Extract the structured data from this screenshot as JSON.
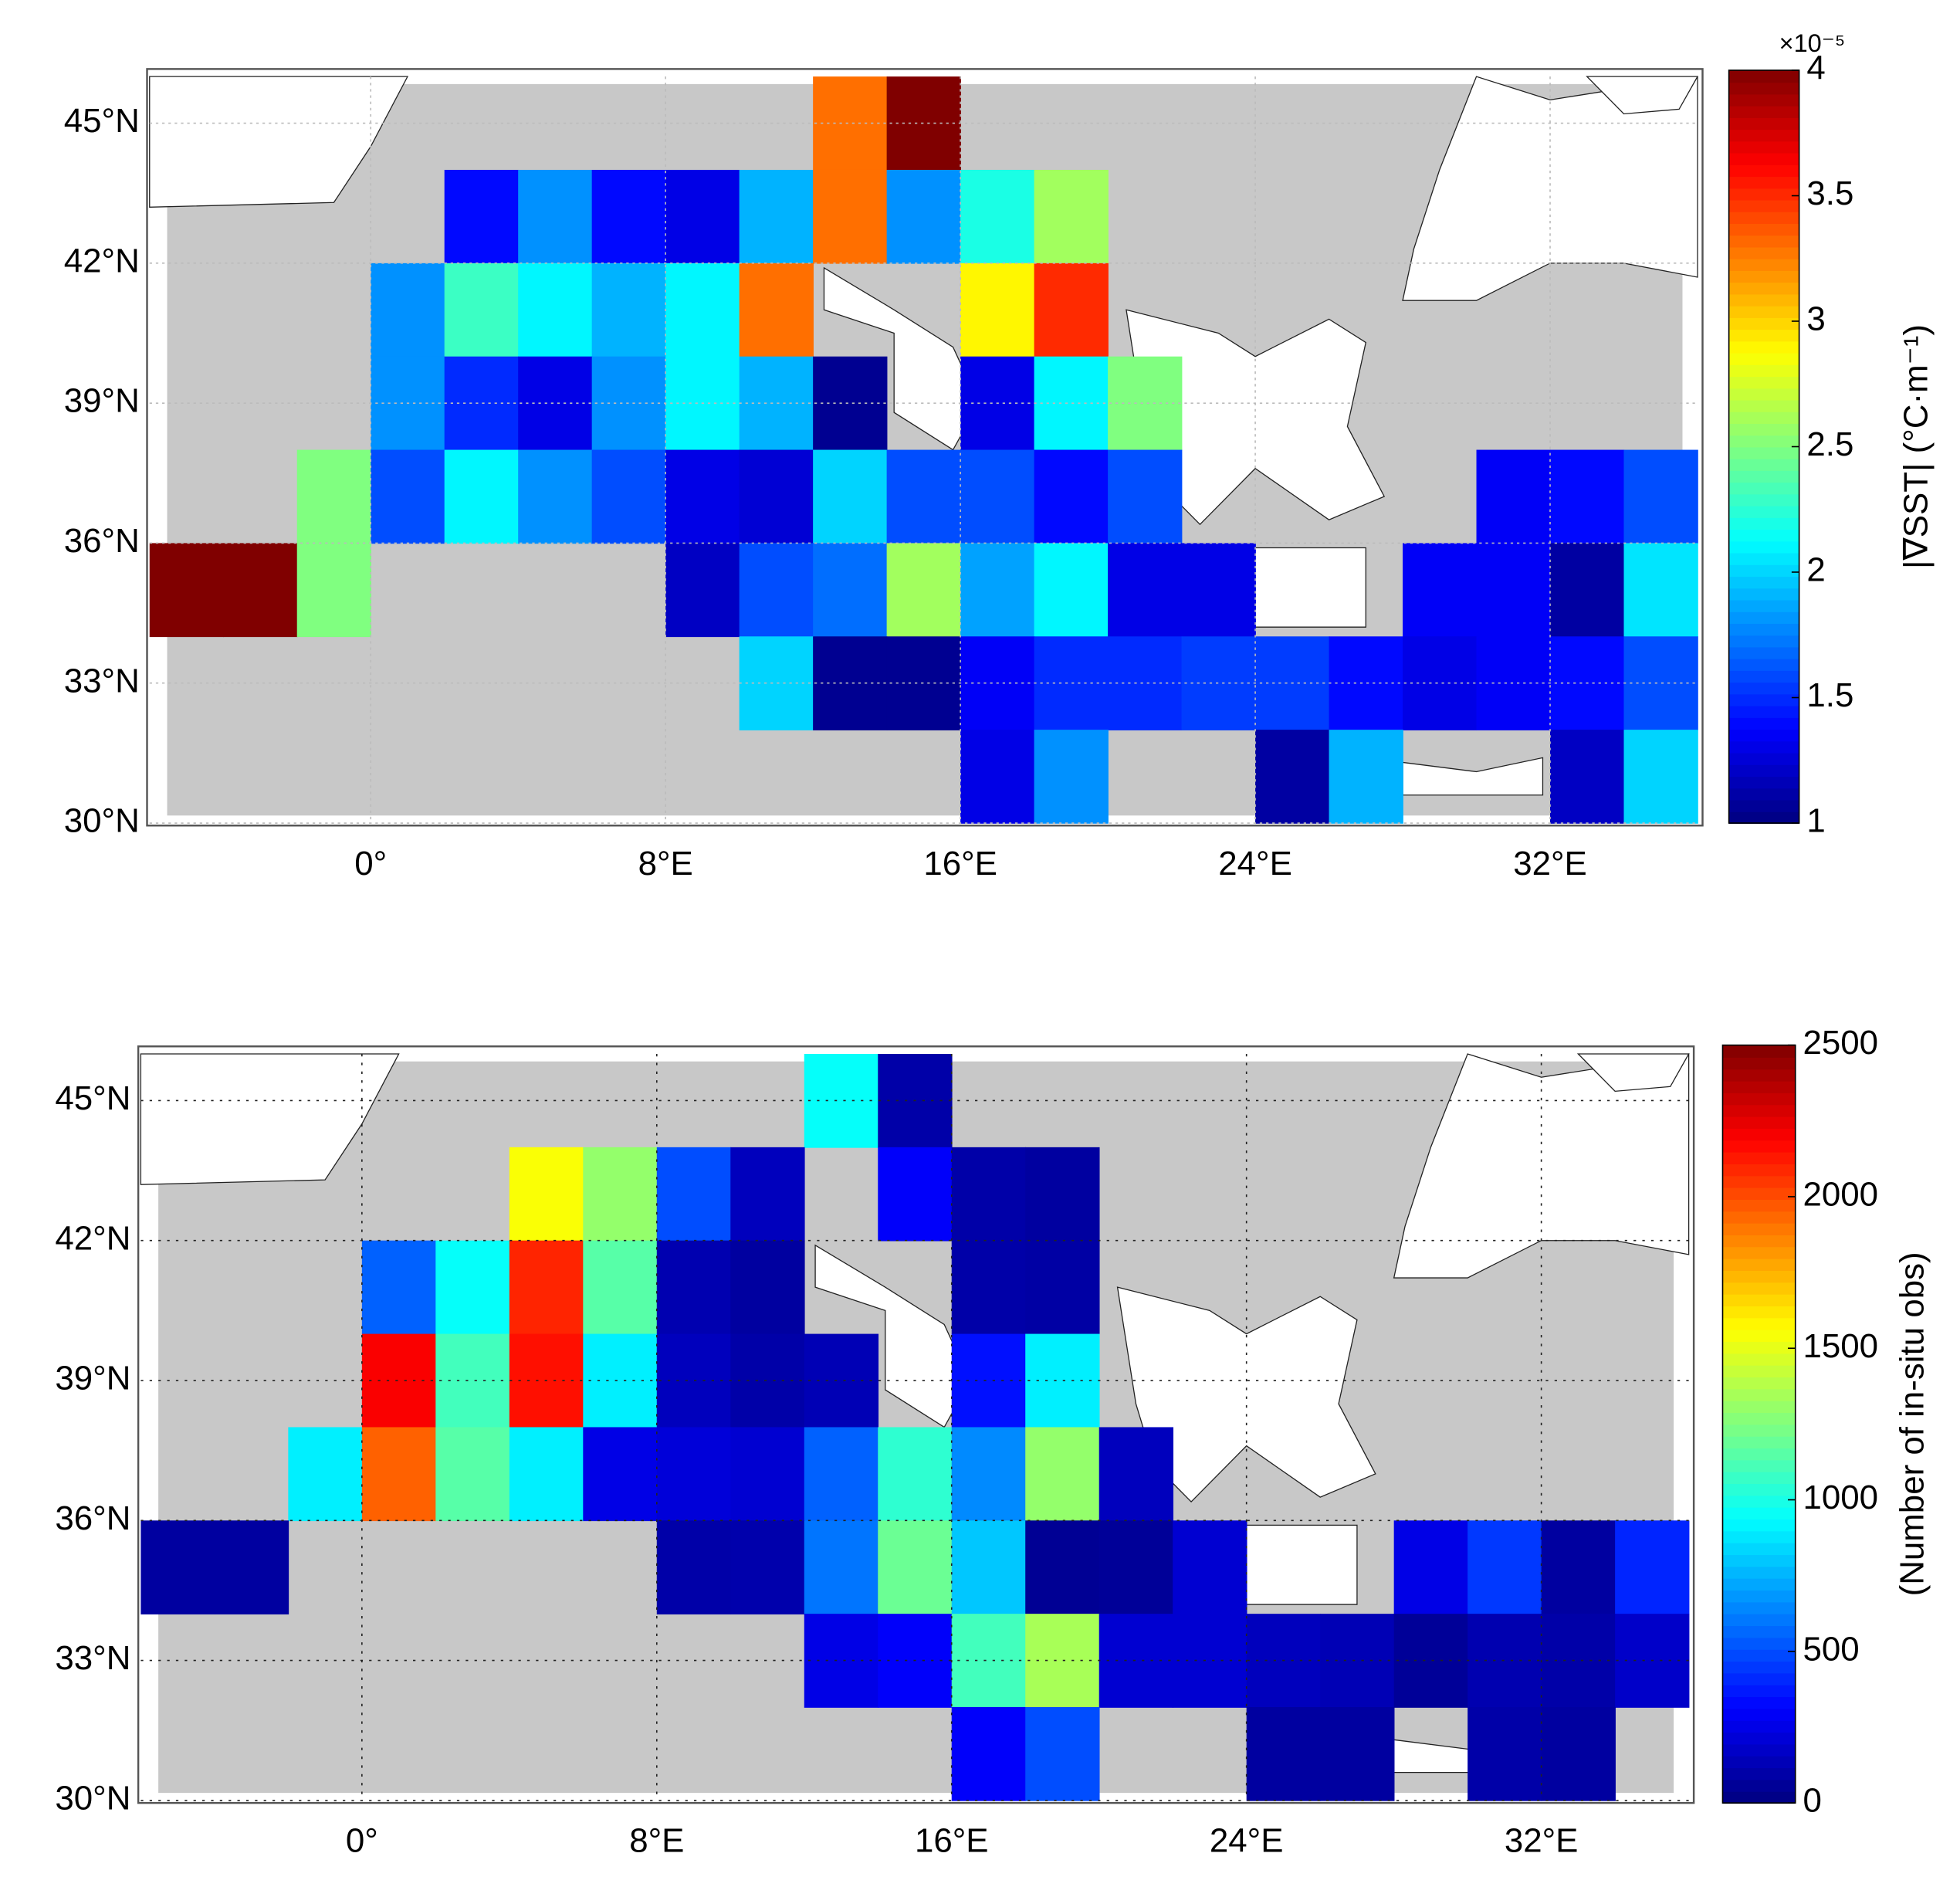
{
  "chart_data": [
    {
      "type": "heatmap",
      "colormap": "jet",
      "cell_size": 2,
      "xlim": [
        -6,
        36
      ],
      "ylim": [
        30,
        46
      ],
      "xticks": [
        {
          "value": 0,
          "label": "0°"
        },
        {
          "value": 8,
          "label": "8°E"
        },
        {
          "value": 16,
          "label": "16°E"
        },
        {
          "value": 24,
          "label": "24°E"
        },
        {
          "value": 32,
          "label": "32°E"
        }
      ],
      "yticks": [
        {
          "value": 30,
          "label": "30°N"
        },
        {
          "value": 33,
          "label": "33°N"
        },
        {
          "value": 36,
          "label": "36°N"
        },
        {
          "value": 39,
          "label": "39°N"
        },
        {
          "value": 42,
          "label": "42°N"
        },
        {
          "value": 45,
          "label": "45°N"
        }
      ],
      "colorbar": {
        "lim": [
          1,
          4
        ],
        "ticks": [
          1,
          1.5,
          2,
          2.5,
          3,
          3.5,
          4
        ],
        "label": "|∇SST| (°C·m⁻¹)",
        "multiplier": "×10⁻⁵"
      },
      "cells": {
        "lon": [
          12,
          14,
          2,
          4,
          6,
          8,
          10,
          12,
          14,
          16,
          18,
          0,
          2,
          4,
          6,
          8,
          10,
          16,
          18,
          0,
          2,
          4,
          6,
          8,
          10,
          12,
          16,
          18,
          20,
          -2,
          0,
          2,
          4,
          6,
          8,
          10,
          12,
          14,
          16,
          18,
          20,
          30,
          32,
          34,
          -6,
          -4,
          -2,
          8,
          10,
          12,
          14,
          16,
          18,
          20,
          22,
          28,
          30,
          32,
          34,
          10,
          12,
          14,
          16,
          18,
          20,
          22,
          24,
          26,
          28,
          30,
          32,
          34,
          16,
          18,
          24,
          26,
          32,
          34
        ],
        "lat": [
          44,
          44,
          42,
          42,
          42,
          42,
          42,
          42,
          42,
          42,
          42,
          40,
          40,
          40,
          40,
          40,
          40,
          40,
          40,
          38,
          38,
          38,
          38,
          38,
          38,
          38,
          38,
          38,
          38,
          36,
          36,
          36,
          36,
          36,
          36,
          36,
          36,
          36,
          36,
          36,
          36,
          36,
          36,
          36,
          34,
          34,
          34,
          34,
          34,
          34,
          34,
          34,
          34,
          34,
          34,
          34,
          34,
          34,
          34,
          32,
          32,
          32,
          32,
          32,
          32,
          32,
          32,
          32,
          32,
          32,
          32,
          32,
          30,
          30,
          30,
          30,
          30,
          30
        ],
        "values": [
          3.3,
          4.0,
          1.4,
          1.8,
          1.4,
          1.3,
          1.9,
          3.3,
          1.8,
          2.2,
          2.6,
          1.8,
          2.3,
          2.1,
          1.9,
          2.1,
          3.3,
          2.9,
          3.5,
          1.8,
          1.5,
          1.3,
          1.8,
          2.1,
          1.9,
          1.05,
          1.3,
          2.1,
          2.5,
          2.5,
          1.6,
          2.1,
          1.8,
          1.6,
          1.3,
          1.25,
          2.0,
          1.6,
          1.6,
          1.4,
          1.6,
          1.35,
          1.4,
          1.6,
          4.0,
          4.0,
          2.5,
          1.2,
          1.6,
          1.7,
          2.6,
          1.85,
          2.1,
          1.3,
          1.3,
          1.35,
          1.35,
          1.1,
          2.05,
          2.0,
          1.05,
          1.05,
          1.35,
          1.5,
          1.5,
          1.55,
          1.55,
          1.4,
          1.3,
          1.35,
          1.4,
          1.6,
          1.3,
          1.8,
          1.1,
          1.9,
          1.2,
          2.0
        ]
      }
    },
    {
      "type": "heatmap",
      "colormap": "jet",
      "cell_size": 2,
      "xlim": [
        -6,
        36
      ],
      "ylim": [
        30,
        46
      ],
      "xticks": [
        {
          "value": 0,
          "label": "0°"
        },
        {
          "value": 8,
          "label": "8°E"
        },
        {
          "value": 16,
          "label": "16°E"
        },
        {
          "value": 24,
          "label": "24°E"
        },
        {
          "value": 32,
          "label": "32°E"
        }
      ],
      "yticks": [
        {
          "value": 30,
          "label": "30°N"
        },
        {
          "value": 33,
          "label": "33°N"
        },
        {
          "value": 36,
          "label": "36°N"
        },
        {
          "value": 39,
          "label": "39°N"
        },
        {
          "value": 42,
          "label": "42°N"
        },
        {
          "value": 45,
          "label": "45°N"
        }
      ],
      "colorbar": {
        "lim": [
          0,
          2500
        ],
        "ticks": [
          0,
          500,
          1000,
          1500,
          2000,
          2500
        ],
        "label": "(Number of in-situ obs)"
      },
      "cells": {
        "lon": [
          12,
          14,
          4,
          6,
          8,
          10,
          14,
          16,
          18,
          0,
          2,
          4,
          6,
          8,
          10,
          16,
          18,
          0,
          2,
          4,
          6,
          8,
          10,
          12,
          16,
          18,
          -2,
          0,
          2,
          4,
          6,
          8,
          10,
          12,
          14,
          16,
          18,
          20,
          -6,
          -4,
          8,
          10,
          12,
          14,
          16,
          18,
          20,
          22,
          28,
          30,
          32,
          34,
          12,
          14,
          16,
          18,
          20,
          22,
          24,
          26,
          28,
          30,
          32,
          34,
          16,
          18,
          24,
          26,
          30,
          32
        ],
        "lat": [
          44,
          44,
          42,
          42,
          42,
          42,
          42,
          42,
          42,
          40,
          40,
          40,
          40,
          40,
          40,
          40,
          40,
          38,
          38,
          38,
          38,
          38,
          38,
          38,
          38,
          38,
          36,
          36,
          36,
          36,
          36,
          36,
          36,
          36,
          36,
          36,
          36,
          36,
          34,
          34,
          34,
          34,
          34,
          34,
          34,
          34,
          34,
          34,
          34,
          34,
          34,
          34,
          32,
          32,
          32,
          32,
          32,
          32,
          32,
          32,
          32,
          32,
          32,
          32,
          30,
          30,
          30,
          30,
          30,
          30
        ],
        "values": [
          950,
          100,
          1550,
          1300,
          500,
          150,
          300,
          100,
          80,
          550,
          950,
          2100,
          1150,
          120,
          80,
          100,
          90,
          2200,
          1100,
          2150,
          900,
          150,
          100,
          130,
          350,
          900,
          900,
          1950,
          1150,
          900,
          250,
          220,
          200,
          550,
          1050,
          650,
          1300,
          150,
          80,
          80,
          100,
          110,
          600,
          1200,
          800,
          50,
          60,
          200,
          250,
          450,
          80,
          400,
          250,
          300,
          1100,
          1350,
          200,
          200,
          150,
          130,
          60,
          120,
          100,
          180,
          300,
          500,
          80,
          80,
          100,
          80
        ]
      }
    }
  ]
}
